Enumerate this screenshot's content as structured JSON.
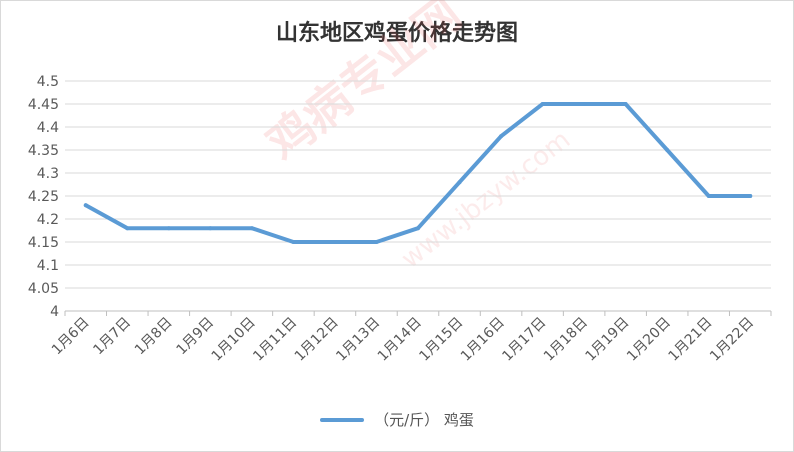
{
  "chart_data": {
    "type": "line",
    "title": "山东地区鸡蛋价格走势图",
    "categories": [
      "1月6日",
      "1月7日",
      "1月8日",
      "1月9日",
      "1月10日",
      "1月11日",
      "1月12日",
      "1月13日",
      "1月14日",
      "1月15日",
      "1月16日",
      "1月17日",
      "1月18日",
      "1月19日",
      "1月20日",
      "1月21日",
      "1月22日"
    ],
    "series": [
      {
        "name": "（元/斤） 鸡蛋",
        "values": [
          4.23,
          4.18,
          4.18,
          4.18,
          4.18,
          4.15,
          4.15,
          4.15,
          4.18,
          4.28,
          4.38,
          4.45,
          4.45,
          4.45,
          4.35,
          4.25,
          4.25
        ]
      }
    ],
    "ylim": [
      4,
      4.5
    ],
    "yticks": [
      "4",
      "4.05",
      "4.1",
      "4.15",
      "4.2",
      "4.25",
      "4.3",
      "4.35",
      "4.4",
      "4.45",
      "4.5"
    ],
    "grid": true,
    "legend_position": "bottom",
    "line_color": "#5b9bd5"
  },
  "watermark": {
    "text": "鸡病专业网",
    "url": "www.jbzyw.com"
  }
}
